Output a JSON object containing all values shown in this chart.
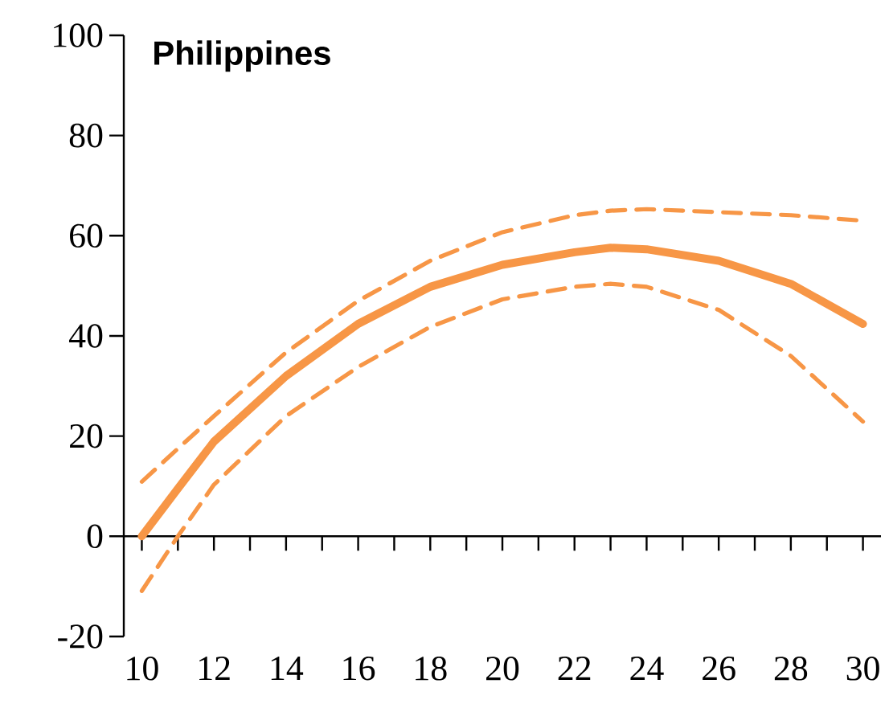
{
  "chart_data": {
    "type": "line",
    "title": "Philippines",
    "x": [
      10,
      11,
      12,
      14,
      16,
      18,
      20,
      22,
      23,
      24,
      26,
      28,
      30
    ],
    "series": [
      {
        "color": "#f79646",
        "line_style": "solid",
        "values": [
          0,
          9.5,
          18.9,
          32,
          42.4,
          49.8,
          54.2,
          56.7,
          57.6,
          57.3,
          55,
          50.4,
          42.4
        ]
      },
      {
        "color": "#f79646",
        "line_style": "dashed",
        "values": [
          10.9,
          17.5,
          24,
          36.7,
          47,
          55,
          60.7,
          64.1,
          65,
          65.3,
          64.7,
          64.1,
          63
        ]
      },
      {
        "color": "#f79646",
        "line_style": "dashed",
        "values": [
          -10.9,
          0,
          10.3,
          24,
          33.8,
          41.8,
          47.3,
          49.8,
          50.4,
          49.8,
          45.2,
          36,
          22.9
        ]
      }
    ],
    "xlim": [
      9.5,
      30.5
    ],
    "ylim": [
      -20,
      100
    ],
    "xticks": [
      10,
      {
        "value": 11,
        "label": null
      },
      12,
      {
        "value": 13,
        "label": null
      },
      14,
      {
        "value": 15,
        "label": null
      },
      16,
      {
        "value": 17,
        "label": null
      },
      18,
      {
        "value": 19,
        "label": null
      },
      20,
      {
        "value": 21,
        "label": null
      },
      22,
      {
        "value": 23,
        "label": null
      },
      24,
      {
        "value": 25,
        "label": null
      },
      26,
      {
        "value": 27,
        "label": null
      },
      28,
      {
        "value": 29,
        "label": null
      },
      30
    ],
    "yticks": [
      -20,
      0,
      20,
      40,
      60,
      80,
      100
    ]
  }
}
